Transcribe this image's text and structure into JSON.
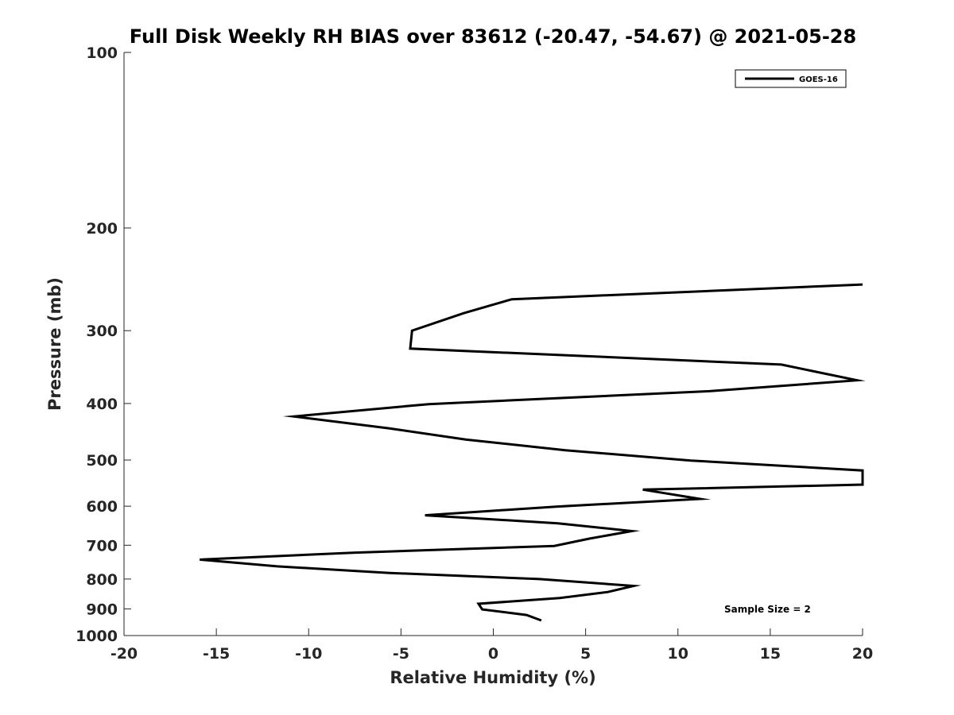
{
  "chart_data": {
    "type": "line",
    "title": "Full Disk Weekly RH BIAS over 83612 (-20.47, -54.67) @ 2021-05-28",
    "xlabel": "Relative Humidity (%)",
    "ylabel": "Pressure (mb)",
    "xlim": [
      -20,
      20
    ],
    "ylim": [
      1000,
      100
    ],
    "y_scale": "log",
    "y_reversed": true,
    "x_ticks": [
      -20,
      -15,
      -10,
      -5,
      0,
      5,
      10,
      15,
      20
    ],
    "x_tick_labels": [
      "-20",
      "-15",
      "-10",
      "-5",
      "0",
      "5",
      "10",
      "15",
      "20"
    ],
    "y_ticks": [
      100,
      200,
      300,
      400,
      500,
      600,
      700,
      800,
      900,
      1000
    ],
    "y_tick_labels": [
      "100",
      "200",
      "300",
      "400",
      "500",
      "600",
      "700",
      "800",
      "900",
      "1000"
    ],
    "grid": false,
    "legend_placement": "top-right",
    "annotation": "Sample Size = 2",
    "series": [
      {
        "name": "GOES-16",
        "color": "#000000",
        "points": [
          [
            20,
            250
          ],
          [
            1,
            265
          ],
          [
            -1.6,
            280
          ],
          [
            -4.4,
            300
          ],
          [
            -4.5,
            322
          ],
          [
            15.6,
            343
          ],
          [
            19.7,
            365
          ],
          [
            11.7,
            381
          ],
          [
            -3.5,
            401
          ],
          [
            -10.8,
            421
          ],
          [
            -5.7,
            441
          ],
          [
            -1.5,
            461
          ],
          [
            3.9,
            481
          ],
          [
            10.7,
            501
          ],
          [
            20,
            521
          ],
          [
            20,
            551
          ],
          [
            8.1,
            562
          ],
          [
            11.2,
            583
          ],
          [
            3.4,
            601
          ],
          [
            -3.7,
            622
          ],
          [
            3.5,
            642
          ],
          [
            7.5,
            662
          ],
          [
            5.2,
            682
          ],
          [
            3.3,
            702
          ],
          [
            -7.6,
            721
          ],
          [
            -15.9,
            741
          ],
          [
            -11.7,
            761
          ],
          [
            -5.6,
            781
          ],
          [
            2.5,
            800
          ],
          [
            7.6,
            822
          ],
          [
            6.2,
            842
          ],
          [
            3.6,
            862
          ],
          [
            -0.8,
            882
          ],
          [
            -0.6,
            902
          ],
          [
            1.8,
            922
          ],
          [
            2.6,
            942
          ]
        ]
      }
    ]
  }
}
